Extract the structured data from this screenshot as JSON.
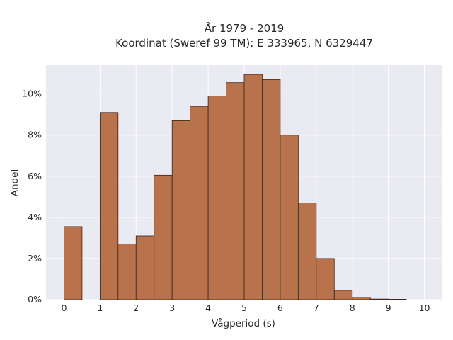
{
  "chart_data": {
    "type": "bar",
    "title_lines": [
      "År 1979 - 2019",
      "Koordinat (Sweref 99 TM): E 333965, N 6329447"
    ],
    "xlabel": "Vågperiod (s)",
    "ylabel": "Andel",
    "xlim": [
      -0.5,
      10.5
    ],
    "ylim": [
      0,
      11.4
    ],
    "x_ticks": [
      0,
      1,
      2,
      3,
      4,
      5,
      6,
      7,
      8,
      9,
      10
    ],
    "y_ticks": [
      0,
      2,
      4,
      6,
      8,
      10
    ],
    "y_tick_suffix": "%",
    "bin_width": 0.5,
    "bins": [
      {
        "start": 0.0,
        "value": 3.55
      },
      {
        "start": 0.5,
        "value": 0.0
      },
      {
        "start": 1.0,
        "value": 9.1
      },
      {
        "start": 1.5,
        "value": 2.7
      },
      {
        "start": 2.0,
        "value": 3.1
      },
      {
        "start": 2.5,
        "value": 6.05
      },
      {
        "start": 3.0,
        "value": 8.7
      },
      {
        "start": 3.5,
        "value": 9.4
      },
      {
        "start": 4.0,
        "value": 9.9
      },
      {
        "start": 4.5,
        "value": 10.55
      },
      {
        "start": 5.0,
        "value": 10.95
      },
      {
        "start": 5.5,
        "value": 10.7
      },
      {
        "start": 6.0,
        "value": 8.0
      },
      {
        "start": 6.5,
        "value": 4.7
      },
      {
        "start": 7.0,
        "value": 2.0
      },
      {
        "start": 7.5,
        "value": 0.45
      },
      {
        "start": 8.0,
        "value": 0.12
      },
      {
        "start": 8.5,
        "value": 0.03
      },
      {
        "start": 9.0,
        "value": 0.02
      },
      {
        "start": 9.5,
        "value": 0.0
      }
    ],
    "grid": true,
    "colors": {
      "bar_fill": "#b8734c",
      "bar_edge": "#3d2417",
      "plot_background": "#eaeaf2",
      "grid": "#ffffff"
    }
  }
}
